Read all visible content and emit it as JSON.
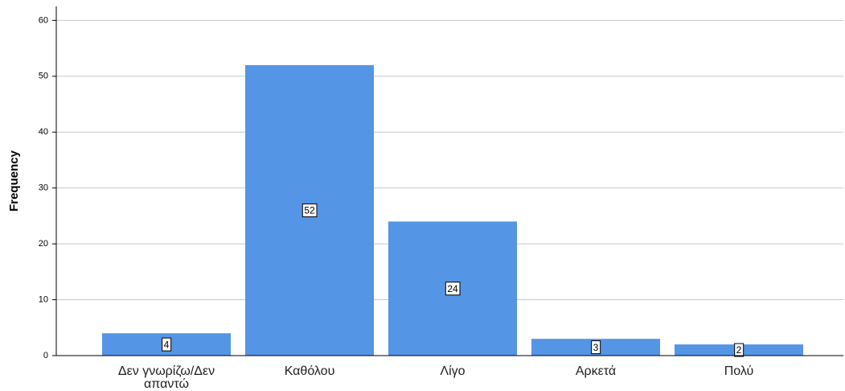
{
  "chart_data": {
    "type": "bar",
    "y_label": "Frequency",
    "categories": [
      "Δεν γνωρίζω/Δεν απαντώ",
      "Καθόλου",
      "Λίγο",
      "Αρκετά",
      "Πολύ"
    ],
    "values": [
      4,
      52,
      24,
      3,
      2
    ],
    "color": "#5595e5",
    "ylim": [
      0,
      62.5
    ],
    "yticks": [
      0,
      10,
      20,
      30,
      40,
      50,
      60
    ],
    "grid": true
  }
}
